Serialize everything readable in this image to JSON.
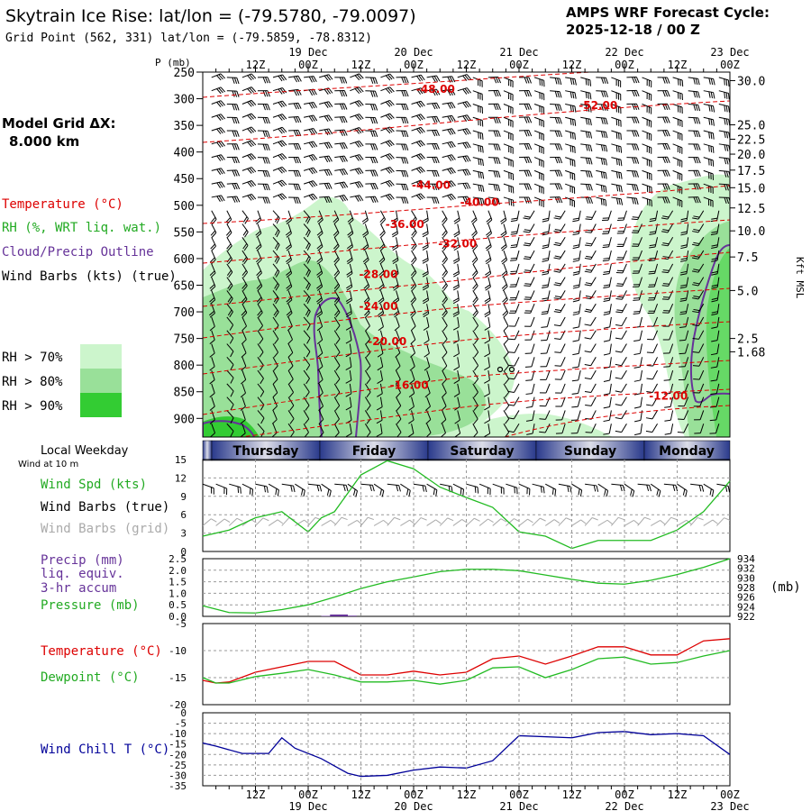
{
  "header": {
    "title": "Skytrain Ice Rise:  lat/lon = (-79.5780, -79.0097)",
    "grid_point": "Grid Point (562, 331) lat/lon = (-79.5859, -78.8312)",
    "forecast_label": "AMPS WRF Forecast Cycle:",
    "forecast_cycle": "2025-12-18 / 00  Z"
  },
  "left_panel": {
    "model_grid_label": "Model Grid ΔX:",
    "model_grid_value": "8.000 km",
    "temperature_label": "Temperature (°C)",
    "rh_label": "RH (%, WRT liq. wat.)",
    "cloud_label": "Cloud/Precip Outline",
    "wind_label": "Wind Barbs (kts) (true)",
    "rh70": "RH > 70%",
    "rh80": "RH > 80%",
    "rh90": "RH > 90%"
  },
  "colors": {
    "temperature": "#dd0000",
    "rh70": "#ccf5cc",
    "rh80": "#99e099",
    "rh90": "#33cc33",
    "cloud": "#663399",
    "wind_speed": "#22bb22",
    "wind_chill": "#000099",
    "precip": "#663399",
    "grid_barbs": "#aaaaaa"
  },
  "chart_data": [
    {
      "type": "heatmap",
      "name": "vertical-cross-section",
      "title": "Pressure-time cross section",
      "ylabel": "P (mb)",
      "y2label": "Kft MSL",
      "p_ticks": [
        250,
        300,
        350,
        400,
        450,
        500,
        550,
        600,
        650,
        700,
        750,
        800,
        850,
        900
      ],
      "kft_ticks": [
        "30.0",
        "25.0",
        "22.5",
        "20.0",
        "17.5",
        "15.0",
        "12.5",
        "10.0",
        "7.5",
        "5.0",
        "2.5",
        "1.68"
      ],
      "kft_p": [
        266,
        349,
        376,
        404,
        434,
        467,
        505,
        548,
        597,
        660,
        750,
        775
      ],
      "x_range_hours": [
        0,
        120
      ],
      "x_ticks": {
        "hours": [
          12,
          24,
          36,
          48,
          60,
          72,
          84,
          96,
          108,
          120
        ],
        "times": [
          "12Z",
          "00Z",
          "12Z",
          "00Z",
          "12Z",
          "00Z",
          "12Z",
          "00Z",
          "12Z",
          "00Z"
        ],
        "dates": [
          "",
          "19 Dec",
          "",
          "20 Dec",
          "",
          "21 Dec",
          "",
          "22 Dec",
          "",
          "23 Dec"
        ]
      },
      "isotherm_labels": [
        {
          "value": "-48.00",
          "hour": 53,
          "p": 282
        },
        {
          "value": "-52.00",
          "hour": 90,
          "p": 313
        },
        {
          "value": "-44.00",
          "hour": 52,
          "p": 462
        },
        {
          "value": "-40.00",
          "hour": 63,
          "p": 494
        },
        {
          "value": "-36.00",
          "hour": 46,
          "p": 536
        },
        {
          "value": "-32.00",
          "hour": 58,
          "p": 572
        },
        {
          "value": "-28.00",
          "hour": 40,
          "p": 630
        },
        {
          "value": "-24.00",
          "hour": 40,
          "p": 690
        },
        {
          "value": "-20.00",
          "hour": 42,
          "p": 756
        },
        {
          "value": "-16.00",
          "hour": 47,
          "p": 838
        },
        {
          "value": "-12.00",
          "hour": 106,
          "p": 858
        }
      ]
    },
    {
      "type": "line",
      "name": "wind-panel",
      "title": "Local Weekday",
      "subtitle": "Wind at 10 m",
      "days": [
        "Thursday",
        "Friday",
        "Saturday",
        "Sunday",
        "Monday"
      ],
      "series_labels": [
        "Wind Spd (kts)",
        "Wind Barbs (true)",
        "Wind Barbs (grid)"
      ],
      "ylim": [
        0,
        15
      ],
      "y_ticks": [
        0,
        3,
        6,
        9,
        12,
        15
      ],
      "x_hours": [
        0,
        6,
        12,
        18,
        24,
        27,
        30,
        36,
        42,
        48,
        54,
        60,
        66,
        72,
        78,
        84,
        90,
        96,
        102,
        108,
        114,
        120
      ],
      "wind_speed": [
        2.5,
        3.5,
        5.5,
        6.5,
        3.2,
        5.5,
        6.5,
        12.5,
        14.8,
        13.5,
        10.5,
        8.8,
        7.2,
        3.2,
        2.5,
        0.5,
        1.8,
        1.8,
        1.8,
        3.5,
        6.5,
        11.5
      ]
    },
    {
      "type": "line",
      "name": "precip-pressure-panel",
      "series_labels": [
        "Precip (mm)",
        "liq. equiv.",
        "3-hr accum",
        "Pressure (mb)"
      ],
      "unit_label": "(mb)",
      "ylim": [
        0,
        2.5
      ],
      "y_ticks": [
        "0.0",
        "0.5",
        "1.0",
        "1.5",
        "2.0",
        "2.5"
      ],
      "y2lim": [
        922,
        934
      ],
      "y2_ticks": [
        922,
        924,
        926,
        928,
        930,
        932,
        934
      ],
      "x_hours": [
        0,
        6,
        12,
        18,
        24,
        30,
        36,
        42,
        48,
        54,
        60,
        66,
        72,
        78,
        84,
        90,
        96,
        102,
        108,
        114,
        120
      ],
      "pressure": [
        924.2,
        922.8,
        922.7,
        923.4,
        924.4,
        926.0,
        927.8,
        929.2,
        930.2,
        931.3,
        931.8,
        931.8,
        931.5,
        930.6,
        929.7,
        928.9,
        928.7,
        929.5,
        930.7,
        932.2,
        934.0
      ],
      "precip_hours": [
        28,
        30,
        32,
        34
      ],
      "precip": [
        0.02,
        0.08,
        0.08,
        0.03
      ]
    },
    {
      "type": "line",
      "name": "temperature-panel",
      "series_labels": [
        "Temperature (°C)",
        "Dewpoint (°C)"
      ],
      "ylim": [
        -20,
        -5
      ],
      "y_ticks": [
        -5,
        -10,
        -15,
        -20
      ],
      "x_hours": [
        0,
        3,
        6,
        12,
        18,
        24,
        30,
        36,
        42,
        48,
        54,
        60,
        66,
        72,
        78,
        84,
        90,
        96,
        102,
        108,
        114,
        120
      ],
      "temperature": [
        -15.5,
        -16.0,
        -15.8,
        -14.0,
        -13.0,
        -12.0,
        -12.0,
        -14.5,
        -14.5,
        -13.8,
        -14.5,
        -14.0,
        -11.5,
        -11.0,
        -12.5,
        -11.0,
        -9.3,
        -9.3,
        -10.8,
        -10.8,
        -8.2,
        -7.8
      ],
      "dewpoint": [
        -15.0,
        -16.0,
        -16.0,
        -14.8,
        -14.2,
        -13.5,
        -14.5,
        -15.8,
        -15.8,
        -15.5,
        -16.2,
        -15.5,
        -13.2,
        -13.0,
        -15.0,
        -13.5,
        -11.5,
        -11.2,
        -12.5,
        -12.2,
        -11.0,
        -10.0
      ]
    },
    {
      "type": "line",
      "name": "wind-chill-panel",
      "series_labels": [
        "Wind Chill T (°C)"
      ],
      "ylim": [
        -35,
        0
      ],
      "y_ticks": [
        0,
        -5,
        -10,
        -15,
        -20,
        -25,
        -30,
        -35
      ],
      "x_hours": [
        0,
        3,
        9,
        15,
        18,
        21,
        27,
        33,
        36,
        42,
        48,
        54,
        60,
        66,
        72,
        84,
        90,
        96,
        102,
        108,
        114,
        120
      ],
      "wind_chill": [
        -14.5,
        -16.0,
        -19.5,
        -19.5,
        -12.0,
        -17.0,
        -22.0,
        -29.0,
        -30.5,
        -30.0,
        -27.5,
        -26.0,
        -26.5,
        -23.0,
        -11.0,
        -12.0,
        -9.5,
        -9.0,
        -10.5,
        -10.0,
        -11.0,
        -20.0
      ]
    }
  ]
}
